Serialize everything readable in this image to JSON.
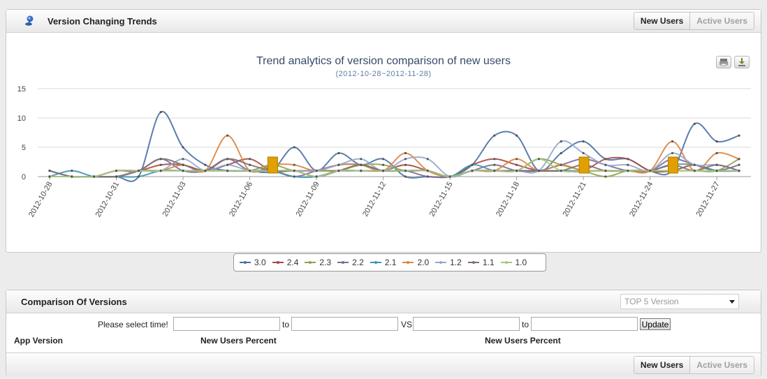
{
  "trends_panel": {
    "title": "Version Changing Trends",
    "tabs": [
      {
        "label": "New Users",
        "active": true
      },
      {
        "label": "Active Users",
        "active": false
      }
    ]
  },
  "chart_data": {
    "type": "line",
    "title": "Trend analytics of version comparison of new users",
    "subtitle": "(2012-10-28~2012-11-28)",
    "ylim": [
      0,
      15
    ],
    "yticks": [
      0,
      5,
      10,
      15
    ],
    "grid": true,
    "legend_position": "bottom-center",
    "x": [
      "2012-10-28",
      "2012-10-29",
      "2012-10-30",
      "2012-10-31",
      "2012-11-01",
      "2012-11-02",
      "2012-11-03",
      "2012-11-04",
      "2012-11-05",
      "2012-11-06",
      "2012-11-07",
      "2012-11-08",
      "2012-11-09",
      "2012-11-10",
      "2012-11-11",
      "2012-11-12",
      "2012-11-13",
      "2012-11-14",
      "2012-11-15",
      "2012-11-16",
      "2012-11-17",
      "2012-11-18",
      "2012-11-19",
      "2012-11-20",
      "2012-11-21",
      "2012-11-22",
      "2012-11-23",
      "2012-11-24",
      "2012-11-25",
      "2012-11-26",
      "2012-11-27",
      "2012-11-28"
    ],
    "x_tick_labels": [
      "2012-10-28",
      "2012-10-31",
      "2012-11-03",
      "2012-11-06",
      "2012-11-09",
      "2012-11-12",
      "2012-11-15",
      "2012-11-18",
      "2012-11-21",
      "2012-11-24",
      "2012-11-27"
    ],
    "series": [
      {
        "name": "3.0",
        "color": "#4a6fa5",
        "values": [
          1,
          0,
          0,
          0,
          0,
          11,
          5,
          2,
          1,
          1,
          1,
          5,
          1,
          4,
          2,
          3,
          0,
          0,
          0,
          2,
          7,
          7,
          1,
          4,
          6,
          3,
          3,
          1,
          1,
          9,
          6,
          7
        ]
      },
      {
        "name": "2.4",
        "color": "#aa4643",
        "values": [
          0,
          0,
          0,
          1,
          1,
          2,
          2,
          1,
          2,
          3,
          1,
          1,
          1,
          1,
          1,
          1,
          2,
          1,
          0,
          2,
          3,
          2,
          1,
          1,
          1,
          3,
          3,
          1,
          1,
          2,
          1,
          1
        ]
      },
      {
        "name": "2.3",
        "color": "#89a54e",
        "values": [
          0,
          0,
          0,
          0,
          1,
          1,
          1,
          1,
          1,
          1,
          2,
          1,
          1,
          1,
          2,
          2,
          1,
          1,
          0,
          1,
          1,
          1,
          3,
          2,
          1,
          0,
          1,
          1,
          1,
          1,
          1,
          3
        ]
      },
      {
        "name": "2.2",
        "color": "#80699b",
        "values": [
          0,
          0,
          0,
          1,
          1,
          3,
          1,
          1,
          3,
          1,
          1,
          0,
          1,
          2,
          2,
          1,
          1,
          0,
          0,
          1,
          2,
          1,
          1,
          2,
          3,
          2,
          1,
          1,
          3,
          2,
          1,
          2
        ]
      },
      {
        "name": "2.1",
        "color": "#3d96ae",
        "values": [
          0,
          1,
          0,
          0,
          0,
          1,
          1,
          1,
          1,
          1,
          1,
          0,
          0,
          1,
          1,
          1,
          1,
          1,
          0,
          2,
          1,
          1,
          1,
          1,
          1,
          1,
          1,
          1,
          2,
          2,
          1,
          1
        ]
      },
      {
        "name": "2.0",
        "color": "#db843d",
        "values": [
          0,
          0,
          0,
          1,
          1,
          1,
          2,
          1,
          7,
          1,
          2,
          2,
          1,
          2,
          2,
          1,
          4,
          1,
          0,
          1,
          1,
          3,
          1,
          2,
          1,
          1,
          1,
          1,
          6,
          1,
          4,
          3
        ]
      },
      {
        "name": "1.2",
        "color": "#92a8cd",
        "values": [
          0,
          0,
          0,
          0,
          1,
          1,
          3,
          1,
          2,
          1,
          1,
          1,
          1,
          2,
          3,
          1,
          3,
          3,
          0,
          1,
          1,
          1,
          1,
          6,
          4,
          2,
          2,
          1,
          4,
          2,
          2,
          1
        ]
      },
      {
        "name": "1.1",
        "color": "#7f6f6f",
        "values": [
          1,
          0,
          0,
          0,
          1,
          3,
          2,
          1,
          3,
          2,
          1,
          1,
          0,
          1,
          2,
          1,
          1,
          1,
          0,
          1,
          1,
          1,
          1,
          1,
          2,
          1,
          1,
          1,
          2,
          1,
          2,
          1
        ]
      },
      {
        "name": "1.0",
        "color": "#a5c77f",
        "values": [
          0,
          0,
          0,
          1,
          1,
          1,
          1,
          1,
          1,
          1,
          1,
          1,
          0,
          1,
          1,
          1,
          1,
          1,
          0,
          1,
          1,
          1,
          3,
          1,
          1,
          1,
          1,
          1,
          1,
          1,
          1,
          1
        ]
      }
    ],
    "markers_at": [
      "2012-11-07",
      "2012-11-21",
      "2012-11-25"
    ]
  },
  "comparison_panel": {
    "title": "Comparison Of Versions",
    "select_value": "TOP 5 Version",
    "select_prompt": "Please select time!",
    "to1": "to",
    "vs": "VS",
    "to2": "to",
    "update_label": "Update",
    "columns": [
      "App Version",
      "New Users Percent",
      "New Users Percent"
    ],
    "tabs": [
      {
        "label": "New Users",
        "active": true
      },
      {
        "label": "Active Users",
        "active": false
      }
    ]
  },
  "icons": {
    "logo": "pin-icon",
    "print": "print-icon",
    "download": "download-icon"
  }
}
